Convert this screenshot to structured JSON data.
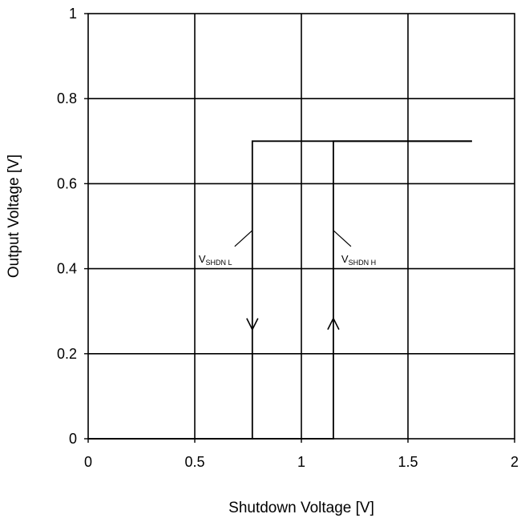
{
  "chart_data": {
    "type": "line",
    "title": "",
    "xlabel": "Shutdown Voltage [V]",
    "ylabel": "Output Voltage [V]",
    "xlim": [
      0,
      2
    ],
    "ylim": [
      0,
      1
    ],
    "x_ticks": [
      0,
      0.5,
      1,
      1.5,
      2
    ],
    "x_tick_labels": [
      "0",
      "0.5",
      "1",
      "1.5",
      "2"
    ],
    "y_ticks": [
      0,
      0.2,
      0.4,
      0.6,
      0.8,
      1
    ],
    "y_tick_labels": [
      "0",
      "0.2",
      "0.4",
      "0.6",
      "0.8",
      "1"
    ],
    "grid": true,
    "legend": "none",
    "series": [
      {
        "x": [
          0,
          0.77,
          0.77,
          1.8
        ],
        "y": [
          0,
          0,
          0.7,
          0.7
        ],
        "direction": "decreasing"
      },
      {
        "x": [
          0,
          1.15,
          1.15,
          1.8
        ],
        "y": [
          0,
          0,
          0.7,
          0.7
        ],
        "direction": "increasing"
      }
    ],
    "annotations": [
      {
        "main": "V",
        "sub": "SHDN L",
        "x": 0.77,
        "y": 0.49
      },
      {
        "main": "V",
        "sub": "SHDN H",
        "x": 1.15,
        "y": 0.49
      }
    ],
    "arrows": [
      {
        "x": 0.77,
        "y": 0.27,
        "direction": "down"
      },
      {
        "x": 1.15,
        "y": 0.27,
        "direction": "up"
      }
    ]
  }
}
